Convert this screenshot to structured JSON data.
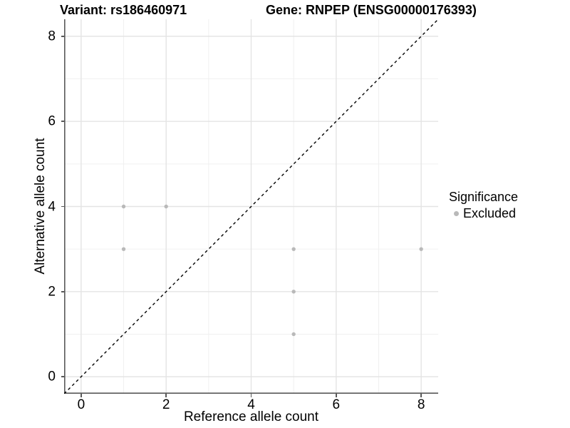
{
  "page": {
    "background": "#ffffff"
  },
  "header": {
    "variant_title": "Variant: rs186460971",
    "gene_title": "Gene: RNPEP (ENSG00000176393)"
  },
  "legend": {
    "title": "Significance",
    "items": [
      {
        "label": "Excluded",
        "color": "#b9b9b9"
      }
    ]
  },
  "colors": {
    "point": "#b9b9b9",
    "axis_line": "#595959",
    "grid_major": "#e4e4e4",
    "grid_minor": "#f0f0f0",
    "diagonal": "#000000",
    "text": "#000000"
  },
  "chart_data": {
    "type": "scatter",
    "title": "Variant: rs186460971 | Gene: RNPEP (ENSG00000176393)",
    "xlabel": "Reference allele count",
    "ylabel": "Alternative allele count",
    "xlim": [
      -0.4,
      8.4
    ],
    "ylim": [
      -0.4,
      8.4
    ],
    "x_major_ticks": [
      0,
      2,
      4,
      6,
      8
    ],
    "x_minor_ticks": [
      1,
      3,
      5,
      7
    ],
    "y_major_ticks": [
      0,
      2,
      4,
      6,
      8
    ],
    "y_minor_ticks": [
      1,
      3,
      5,
      7
    ],
    "grid": "on",
    "legend_position": "right",
    "series": [
      {
        "name": "Excluded",
        "color": "#b9b9b9",
        "marker": "circle",
        "points": [
          [
            1,
            4
          ],
          [
            2,
            4
          ],
          [
            1,
            3
          ],
          [
            5,
            3
          ],
          [
            8,
            3
          ],
          [
            5,
            2
          ],
          [
            5,
            1
          ]
        ]
      }
    ],
    "reference_line": {
      "kind": "y=x",
      "style": "dashed",
      "color": "#000000",
      "x1": -0.4,
      "y1": -0.4,
      "x2": 8.4,
      "y2": 8.4
    }
  }
}
